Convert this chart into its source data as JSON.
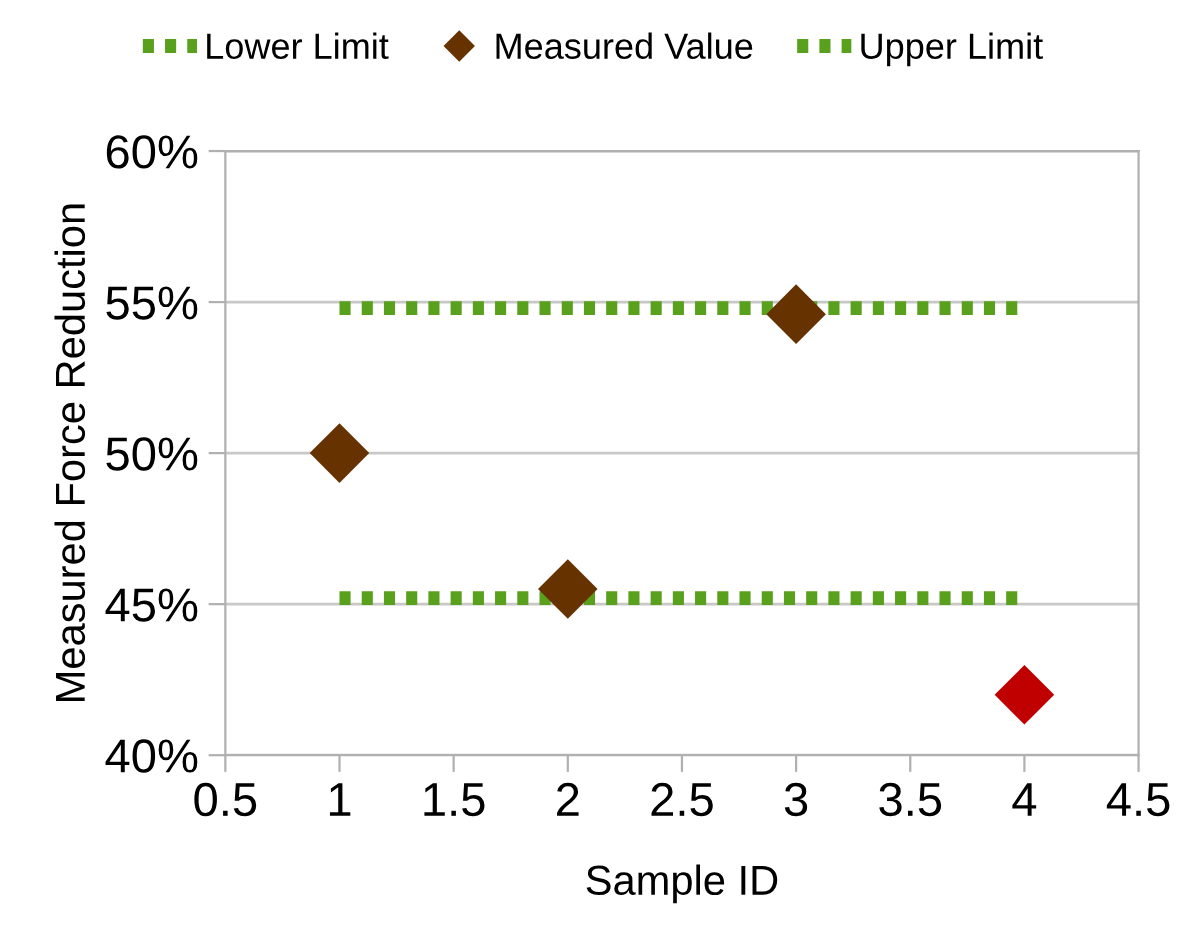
{
  "chart_data": {
    "type": "scatter",
    "xlabel": "Sample ID",
    "ylabel": "Measured Force Reduction",
    "xlim": [
      0.5,
      4.5
    ],
    "xticks": [
      0.5,
      1,
      1.5,
      2,
      2.5,
      3,
      3.5,
      4,
      4.5
    ],
    "ylim": [
      40,
      60
    ],
    "yticks": [
      {
        "value": 40,
        "label": "40%"
      },
      {
        "value": 45,
        "label": "45%"
      },
      {
        "value": 50,
        "label": "50%"
      },
      {
        "value": 55,
        "label": "55%"
      },
      {
        "value": 60,
        "label": "60%"
      }
    ],
    "grid": "y",
    "legend": "top",
    "series": [
      {
        "name": "Lower Limit",
        "type": "line",
        "line_style": "dotted",
        "marker": "none",
        "color": "#59a01c",
        "x": [
          1,
          4
        ],
        "values": [
          45.2,
          45.2
        ]
      },
      {
        "name": "Measured Value",
        "marker": "diamond",
        "color": "#663300",
        "colors": [
          "#663300",
          "#663300",
          "#663300",
          "#c00000"
        ],
        "x": [
          1,
          2,
          3,
          4
        ],
        "values": [
          50,
          45.5,
          54.6,
          42
        ]
      },
      {
        "name": "Upper Limit",
        "type": "line",
        "line_style": "dotted",
        "marker": "none",
        "color": "#59a01c",
        "x": [
          1,
          4
        ],
        "values": [
          54.8,
          54.8
        ]
      }
    ]
  }
}
